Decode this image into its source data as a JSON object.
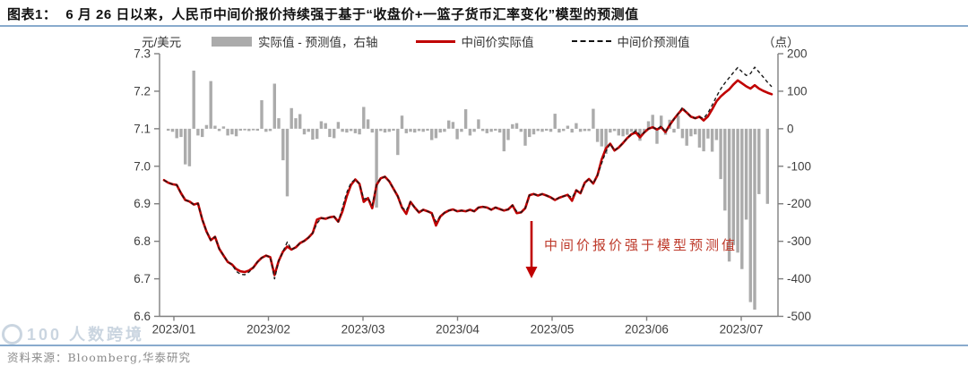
{
  "header": {
    "prefix": "图表1：",
    "title": "6 月 26 日以来，人民币中间价报价持续强于基于“收盘价+一篮子货币汇率变化”模型的预测值"
  },
  "footer": {
    "source": "资料来源：Bloomberg,华泰研究",
    "watermark": "100 人数跨境"
  },
  "chart_data": {
    "type": "combo-line-bar",
    "title": "6 月 26 日以来，人民币中间价报价持续强于基于“收盘价+一篮子货币汇率变化”模型的预测值",
    "left_axis": {
      "label": "元/美元",
      "min": 6.6,
      "max": 7.3,
      "ticks": [
        7.3,
        7.2,
        7.1,
        7.0,
        6.9,
        6.8,
        6.7,
        6.6
      ]
    },
    "right_axis": {
      "label": "（点）",
      "min": -500,
      "max": 200,
      "ticks": [
        200,
        100,
        0,
        -100,
        -200,
        -300,
        -400,
        -500
      ]
    },
    "x_axis": {
      "ticks": [
        "2023/01",
        "2023/02",
        "2023/03",
        "2023/04",
        "2023/05",
        "2023/06",
        "2023/07"
      ]
    },
    "grid": false,
    "legend_position": "top",
    "legend": [
      {
        "label": "实际值 - 预测值，右轴",
        "type": "bar",
        "color": "#ABABAB"
      },
      {
        "label": "中间价实际值",
        "type": "line",
        "color": "#C00000"
      },
      {
        "label": "中间价预测值",
        "type": "dashed-line",
        "color": "#1A1A1A"
      }
    ],
    "annotation": {
      "text": "中间价报价强于模型预测值",
      "color": "#BE3A2B",
      "arrow_color": "#C00000"
    },
    "series": [
      {
        "name": "实际值 - 预测值，右轴",
        "type": "bar",
        "axis": "right",
        "color": "#ABABAB",
        "values": [
          0,
          -5,
          -8,
          -25,
          -22,
          -95,
          -100,
          155,
          -18,
          -22,
          10,
          127,
          8,
          -6,
          6,
          -18,
          -15,
          -20,
          -5,
          -4,
          -6,
          -4,
          -5,
          76,
          -8,
          -6,
          120,
          28,
          -84,
          -180,
          55,
          28,
          39,
          -15,
          -8,
          -29,
          -27,
          20,
          15,
          -22,
          -25,
          18,
          -8,
          -10,
          -6,
          -12,
          -15,
          58,
          25,
          -10,
          -210,
          -6,
          -10,
          -8,
          -5,
          -70,
          35,
          -12,
          -8,
          -10,
          -6,
          -8,
          -5,
          -30,
          -25,
          -10,
          -8,
          22,
          18,
          -28,
          -8,
          52,
          -18,
          -8,
          25,
          -6,
          -12,
          -8,
          -5,
          -10,
          -60,
          -30,
          12,
          15,
          -8,
          -45,
          -22,
          -15,
          -6,
          -8,
          -5,
          -8,
          40,
          -10,
          -6,
          8,
          -10,
          15,
          -8,
          -6,
          -6,
          53,
          -35,
          -47,
          -67,
          -10,
          -6,
          -18,
          -20,
          -16,
          -8,
          -12,
          -32,
          -10,
          20,
          37,
          -40,
          35,
          -16,
          24,
          -10,
          35,
          -25,
          -45,
          -20,
          -15,
          -50,
          -60,
          -26,
          -61,
          -30,
          -134,
          -218,
          -354,
          -310,
          -330,
          -374,
          -242,
          -462,
          -482,
          -174,
          0,
          -200,
          0
        ]
      },
      {
        "name": "中间价实际值",
        "type": "line",
        "axis": "left",
        "color": "#C00000",
        "values": [
          6.963,
          6.956,
          6.952,
          6.95,
          6.928,
          6.91,
          6.906,
          6.898,
          6.901,
          6.858,
          6.826,
          6.803,
          6.812,
          6.78,
          6.762,
          6.745,
          6.738,
          6.726,
          6.72,
          6.718,
          6.722,
          6.73,
          6.745,
          6.756,
          6.762,
          6.758,
          6.71,
          6.748,
          6.773,
          6.786,
          6.778,
          6.784,
          6.795,
          6.801,
          6.81,
          6.822,
          6.858,
          6.862,
          6.86,
          6.864,
          6.866,
          6.852,
          6.88,
          6.92,
          6.95,
          6.965,
          6.953,
          6.905,
          6.915,
          6.888,
          6.95,
          6.968,
          6.972,
          6.96,
          6.94,
          6.92,
          6.89,
          6.873,
          6.905,
          6.89,
          6.877,
          6.884,
          6.88,
          6.875,
          6.842,
          6.866,
          6.876,
          6.882,
          6.885,
          6.88,
          6.882,
          6.88,
          6.884,
          6.88,
          6.89,
          6.892,
          6.89,
          6.884,
          6.89,
          6.886,
          6.882,
          6.885,
          6.896,
          6.875,
          6.877,
          6.888,
          6.923,
          6.926,
          6.922,
          6.926,
          6.922,
          6.917,
          6.91,
          6.916,
          6.92,
          6.924,
          6.908,
          6.936,
          6.928,
          6.956,
          6.966,
          6.954,
          6.976,
          7.018,
          7.048,
          7.06,
          7.042,
          7.05,
          7.062,
          7.075,
          7.085,
          7.09,
          7.077,
          7.09,
          7.1,
          7.104,
          7.098,
          7.104,
          7.091,
          7.11,
          7.126,
          7.14,
          7.153,
          7.143,
          7.132,
          7.128,
          7.132,
          7.122,
          7.133,
          7.152,
          7.173,
          7.186,
          7.196,
          7.205,
          7.218,
          7.229,
          7.221,
          7.213,
          7.207,
          7.216,
          7.207,
          7.201,
          7.196,
          7.192
        ]
      },
      {
        "name": "中间价预测值",
        "type": "line",
        "dash": true,
        "axis": "left",
        "color": "#1A1A1A",
        "values": [
          6.963,
          6.956,
          6.952,
          6.95,
          6.928,
          6.91,
          6.906,
          6.898,
          6.901,
          6.858,
          6.826,
          6.803,
          6.812,
          6.78,
          6.762,
          6.745,
          6.738,
          6.72,
          6.712,
          6.711,
          6.718,
          6.73,
          6.745,
          6.756,
          6.762,
          6.758,
          6.7,
          6.748,
          6.773,
          6.798,
          6.778,
          6.784,
          6.795,
          6.801,
          6.81,
          6.822,
          6.848,
          6.862,
          6.86,
          6.864,
          6.866,
          6.852,
          6.89,
          6.93,
          6.956,
          6.965,
          6.953,
          6.913,
          6.915,
          6.896,
          6.95,
          6.968,
          6.972,
          6.96,
          6.94,
          6.92,
          6.89,
          6.882,
          6.905,
          6.89,
          6.877,
          6.884,
          6.88,
          6.875,
          6.852,
          6.866,
          6.876,
          6.882,
          6.885,
          6.88,
          6.882,
          6.88,
          6.884,
          6.88,
          6.89,
          6.892,
          6.89,
          6.884,
          6.89,
          6.886,
          6.882,
          6.885,
          6.896,
          6.88,
          6.877,
          6.888,
          6.923,
          6.926,
          6.922,
          6.926,
          6.922,
          6.917,
          6.91,
          6.916,
          6.92,
          6.924,
          6.916,
          6.936,
          6.928,
          6.956,
          6.966,
          6.954,
          6.976,
          7.008,
          7.04,
          7.06,
          7.042,
          7.05,
          7.062,
          7.075,
          7.085,
          7.095,
          7.083,
          7.09,
          7.1,
          7.104,
          7.098,
          7.108,
          7.091,
          7.11,
          7.126,
          7.14,
          7.157,
          7.143,
          7.132,
          7.128,
          7.131,
          7.128,
          7.142,
          7.163,
          7.186,
          7.206,
          7.222,
          7.236,
          7.25,
          7.263,
          7.252,
          7.242,
          7.247,
          7.264,
          7.251,
          7.238,
          7.224,
          7.212
        ]
      }
    ]
  }
}
